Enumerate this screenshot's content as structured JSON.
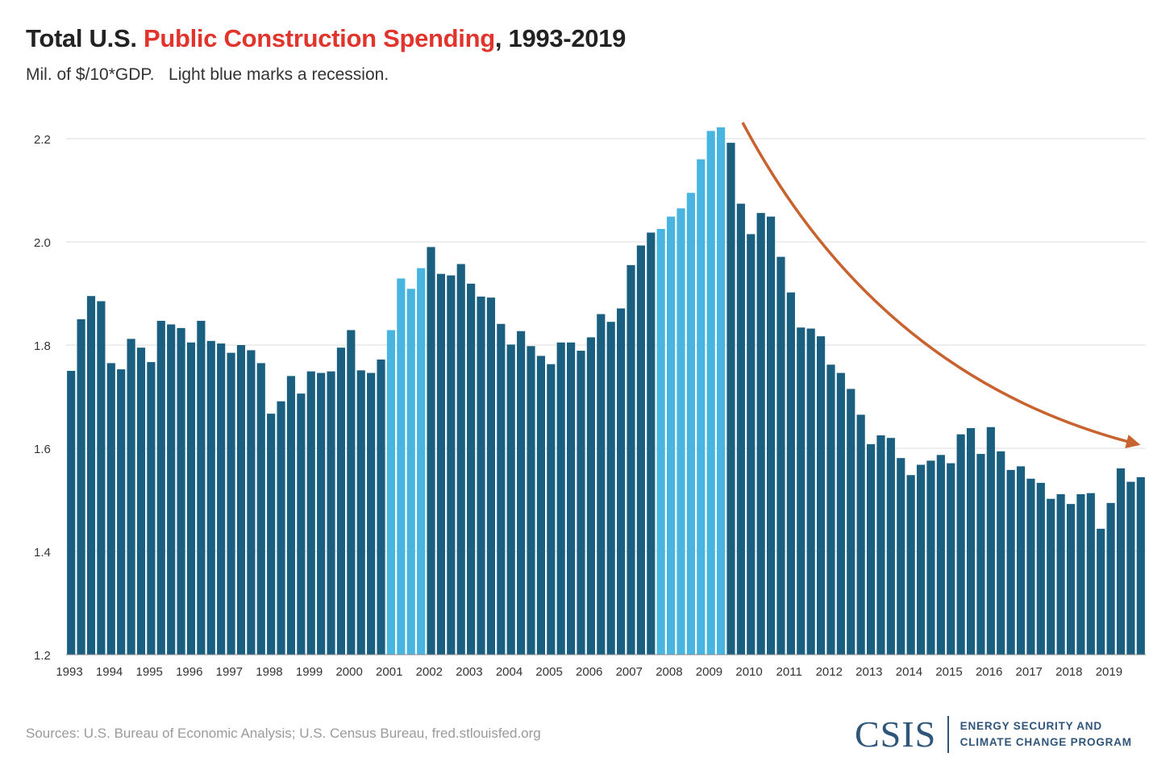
{
  "header": {
    "title_prefix": "Total U.S. ",
    "title_highlight": "Public Construction Spending",
    "title_suffix": ", 1993-2019",
    "subtitle": "Mil. of $/10*GDP.   Light blue marks a recession."
  },
  "footer": {
    "source": "Sources: U.S. Bureau of Economic Analysis; U.S. Census Bureau, fred.stlouisfed.org",
    "logo_mark": "CSIS",
    "logo_line1": "ENERGY SECURITY AND",
    "logo_line2": "CLIMATE CHANGE PROGRAM"
  },
  "colors": {
    "bar": "#1a5f80",
    "recession_bar": "#48b4e0",
    "arrow": "#c8622f",
    "title_highlight": "#e0342c",
    "grid": "#dddddd",
    "axis_text": "#333333"
  },
  "chart_data": {
    "type": "bar",
    "title": "Total U.S. Public Construction Spending, 1993-2019",
    "subtitle": "Mil. of $/10*GDP.   Light blue marks a recession.",
    "xlabel": "",
    "ylabel": "",
    "ylim": [
      1.2,
      2.2
    ],
    "yticks": [
      "1.2",
      "1.4",
      "1.6",
      "1.8",
      "2.0",
      "2.2"
    ],
    "ytick_values": [
      1.2,
      1.4,
      1.6,
      1.8,
      2.0,
      2.2
    ],
    "grid": true,
    "legend": "none",
    "year_labels": [
      "1993",
      "1994",
      "1995",
      "1996",
      "1997",
      "1998",
      "1999",
      "2000",
      "2001",
      "2002",
      "2003",
      "2004",
      "2005",
      "2006",
      "2007",
      "2008",
      "2009",
      "2010",
      "2011",
      "2012",
      "2013",
      "2014",
      "2015",
      "2016",
      "2017",
      "2018",
      "2019"
    ],
    "frequency": "quarterly",
    "start": "1993 Q1",
    "values": [
      1.75,
      1.85,
      1.895,
      1.885,
      1.765,
      1.753,
      1.812,
      1.795,
      1.767,
      1.847,
      1.84,
      1.833,
      1.805,
      1.847,
      1.808,
      1.803,
      1.785,
      1.8,
      1.79,
      1.765,
      1.667,
      1.691,
      1.74,
      1.706,
      1.749,
      1.746,
      1.749,
      1.795,
      1.829,
      1.751,
      1.746,
      1.772,
      1.829,
      1.929,
      1.909,
      1.949,
      1.99,
      1.938,
      1.935,
      1.957,
      1.919,
      1.894,
      1.892,
      1.841,
      1.801,
      1.827,
      1.798,
      1.779,
      1.763,
      1.805,
      1.805,
      1.789,
      1.815,
      1.86,
      1.845,
      1.871,
      1.955,
      1.993,
      2.018,
      2.025,
      2.049,
      2.065,
      2.095,
      2.16,
      2.215,
      2.222,
      2.192,
      2.074,
      2.015,
      2.056,
      2.049,
      1.971,
      1.902,
      1.834,
      1.832,
      1.817,
      1.762,
      1.746,
      1.715,
      1.665,
      1.608,
      1.625,
      1.62,
      1.581,
      1.548,
      1.568,
      1.576,
      1.587,
      1.571,
      1.627,
      1.639,
      1.589,
      1.641,
      1.594,
      1.558,
      1.565,
      1.541,
      1.533,
      1.502,
      1.511,
      1.492,
      1.511,
      1.513,
      1.444,
      1.494,
      1.561,
      1.535,
      1.544
    ],
    "recession_quarters": [
      32,
      33,
      34,
      35,
      59,
      60,
      61,
      62,
      63,
      64,
      65
    ],
    "annotation": "downward trend arrow from 2009 peak to 2019"
  }
}
